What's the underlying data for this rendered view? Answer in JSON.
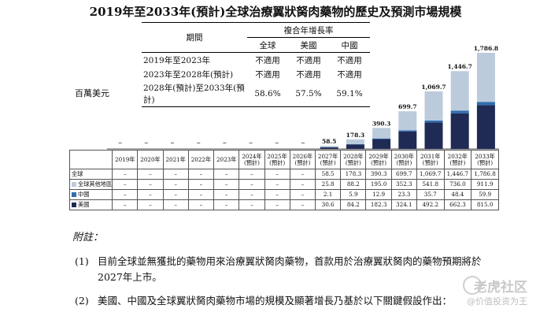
{
  "title": "2019年至2033年(預計)全球治療翼狀胬肉藥物的歷史及預測市場規模",
  "unit_label": "百萬美元",
  "cagr_table": {
    "header_group": "複合年增長率",
    "period_label": "期間",
    "columns": [
      "全球",
      "美國",
      "中國"
    ],
    "rows": [
      {
        "period": "2019年至2023年",
        "values": [
          "不適用",
          "不適用",
          "不適用"
        ]
      },
      {
        "period": "2023年至2028年(預計)",
        "values": [
          "不適用",
          "不適用",
          "不適用"
        ]
      },
      {
        "period": "2028年(預計)至2033年(預計)",
        "values": [
          "58.6%",
          "57.5%",
          "59.1%"
        ]
      }
    ]
  },
  "chart_data": {
    "type": "bar",
    "stacked": true,
    "title": "2019年至2033年(預計)全球治療翼狀胬肉藥物的歷史及預測市場規模",
    "ylabel": "百萬美元",
    "categories": [
      "2019年",
      "2020年",
      "2021年",
      "2022年",
      "2023年",
      "2024年(預計)",
      "2025年(預計)",
      "2026年(預計)",
      "2027年(預計)",
      "2028年(預計)",
      "2029年(預計)",
      "2030年(預計)",
      "2031年(預計)",
      "2032年(預計)",
      "2033年(預計)"
    ],
    "series": [
      {
        "name": "美國",
        "color": "#1f2a55",
        "values": [
          null,
          null,
          null,
          null,
          null,
          null,
          null,
          null,
          30.6,
          84.2,
          182.3,
          324.1,
          492.2,
          662.3,
          815.0
        ]
      },
      {
        "name": "中國",
        "color": "#2f6db0",
        "values": [
          null,
          null,
          null,
          null,
          null,
          null,
          null,
          null,
          2.1,
          5.9,
          12.9,
          23.3,
          35.7,
          48.4,
          59.9
        ]
      },
      {
        "name": "全球其他地區",
        "color": "#bccbdc",
        "values": [
          null,
          null,
          null,
          null,
          null,
          null,
          null,
          null,
          25.8,
          88.2,
          195.0,
          352.3,
          541.8,
          736.0,
          911.9
        ]
      }
    ],
    "totals_label": "全球",
    "totals": [
      null,
      null,
      null,
      null,
      null,
      null,
      null,
      null,
      58.5,
      178.3,
      390.3,
      699.7,
      1069.7,
      1446.7,
      1786.8
    ],
    "ylim": [
      0,
      1786.8
    ],
    "missing_marker": "–",
    "grid": false,
    "legend_placement": "table-left"
  },
  "notes": {
    "title": "附註：",
    "items": [
      {
        "num": "(1)",
        "text": "目前全球並無獲批的藥物用來治療翼狀胬肉藥物，首款用於治療翼狀胬肉的藥物預期將於2027年上市。"
      },
      {
        "num": "(2)",
        "text": "美國、中國及全球翼狀胬肉藥物市場的規模及顯著增長乃基於以下關鍵假設作出："
      }
    ]
  },
  "watermark": {
    "brand": "老虎社区",
    "author": "@价值投资为王"
  }
}
